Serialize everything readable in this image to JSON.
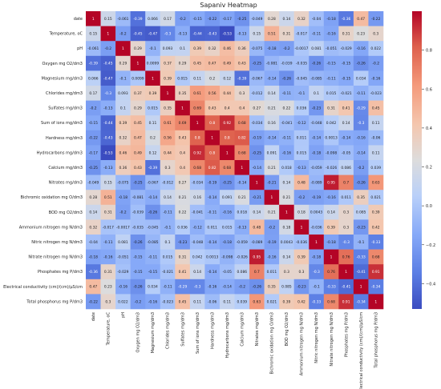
{
  "chart_data": {
    "type": "heatmap",
    "title": "Sapaniv Heatmap",
    "labels": [
      "date",
      "Temperature, oC",
      "pH",
      "Oxygen mg O2/dm3",
      "Magnesium mg/dm3",
      "Chlorides mg/dm3",
      "Sulfates mg/dm3",
      "Sum of ions mg/dm3",
      "Hardness mg/dm3",
      "Hydrocarbons mg/dm3",
      "Calcium mg/dm3",
      "Nitrates mg/dm3",
      "Bichromic oxidation mg O/dm3",
      "BOD mg O2/dm3",
      "Ammonium nitrogen mg N/dm3",
      "Nitric nitrogen mg N/dm3",
      "Nitrate nitrogen mg N/dm3",
      "Phosphates mg P/dm3",
      "Electrical conductivity (cm)/(cm)/µS/cm",
      "Total phosphorus mg P/dm3"
    ],
    "matrix": [
      [
        "1",
        "0.15",
        "-0.061",
        "-0.39",
        "0.066",
        "0.17",
        "-0.2",
        "-0.15",
        "-0.22",
        "-0.17",
        "-0.25",
        "-0.049",
        "0.28",
        "0.14",
        "0.32",
        "-0.04",
        "-0.18",
        "-0.36",
        "0.47",
        "-0.22"
      ],
      [
        "0.15",
        "1",
        "-0.2",
        "-0.45",
        "-0.47",
        "-0.3",
        "-0.13",
        "-0.44",
        "-0.43",
        "-0.53",
        "-0.13",
        "0.15",
        "0.51",
        "0.31",
        "-0.017",
        "-0.11",
        "-0.16",
        "0.31",
        "0.23",
        "0.3"
      ],
      [
        "-0.061",
        "-0.2",
        "1",
        "0.29",
        "-0.1",
        "0.093",
        "0.1",
        "0.39",
        "0.32",
        "0.46",
        "0.36",
        "-0.075",
        "-0.18",
        "-0.2",
        "-0.0017",
        "0.081",
        "-0.051",
        "-0.029",
        "-0.16",
        "0.022"
      ],
      [
        "-0.39",
        "-0.45",
        "0.29",
        "1",
        "0.0099",
        "0.37",
        "0.29",
        "0.45",
        "0.47",
        "0.49",
        "0.43",
        "-0.25",
        "-0.081",
        "-0.039",
        "-0.035",
        "-0.26",
        "-0.15",
        "-0.15",
        "-0.26",
        "-0.2"
      ],
      [
        "0.066",
        "-0.47",
        "-0.1",
        "0.0099",
        "1",
        "0.39",
        "0.015",
        "0.11",
        "0.2",
        "0.12",
        "-0.39",
        "-0.067",
        "-0.14",
        "-0.26",
        "-0.045",
        "-0.085",
        "-0.11",
        "-0.15",
        "0.034",
        "-0.16"
      ],
      [
        "0.17",
        "-0.3",
        "0.093",
        "0.37",
        "0.39",
        "1",
        "0.35",
        "0.61",
        "0.56",
        "0.44",
        "0.3",
        "-0.012",
        "0.14",
        "-0.11",
        "-0.1",
        "0.1",
        "0.015",
        "-0.021",
        "-0.11",
        "-0.023"
      ],
      [
        "-0.2",
        "-0.13",
        "0.1",
        "0.29",
        "0.015",
        "0.35",
        "1",
        "0.69",
        "0.43",
        "0.4",
        "0.4",
        "0.27",
        "0.21",
        "0.22",
        "0.036",
        "-0.23",
        "0.31",
        "0.41",
        "-0.29",
        "0.45"
      ],
      [
        "-0.15",
        "-0.44",
        "0.39",
        "0.45",
        "0.11",
        "0.61",
        "0.69",
        "1",
        "0.8",
        "0.92",
        "0.68",
        "-0.034",
        "0.16",
        "-0.041",
        "-0.12",
        "-0.048",
        "0.042",
        "0.14",
        "-0.3",
        "0.11"
      ],
      [
        "-0.22",
        "-0.43",
        "0.32",
        "0.47",
        "0.2",
        "0.56",
        "0.43",
        "0.8",
        "1",
        "0.8",
        "0.82",
        "-0.19",
        "-0.14",
        "-0.11",
        "0.011",
        "-0.14",
        "0.0013",
        "-0.14",
        "-0.16",
        "-0.06"
      ],
      [
        "-0.17",
        "-0.53",
        "0.46",
        "0.49",
        "0.12",
        "0.44",
        "0.4",
        "0.92",
        "0.8",
        "1",
        "0.68",
        "-0.25",
        "0.091",
        "-0.16",
        "0.015",
        "-0.18",
        "-0.098",
        "-0.05",
        "-0.14",
        "0.11"
      ],
      [
        "-0.25",
        "-0.13",
        "0.36",
        "0.43",
        "-0.39",
        "0.3",
        "0.4",
        "0.68",
        "0.82",
        "0.68",
        "1",
        "-0.14",
        "0.21",
        "0.018",
        "-0.13",
        "-0.059",
        "-0.026",
        "0.086",
        "-0.2",
        "0.039"
      ],
      [
        "-0.049",
        "0.15",
        "-0.075",
        "-0.25",
        "-0.067",
        "-0.012",
        "0.27",
        "-0.034",
        "-0.19",
        "-0.25",
        "-0.14",
        "1",
        "-0.21",
        "0.14",
        "0.48",
        "-0.089",
        "0.95",
        "0.7",
        "-0.26",
        "0.63"
      ],
      [
        "0.28",
        "0.51",
        "-0.18",
        "-0.081",
        "-0.14",
        "0.14",
        "0.21",
        "0.16",
        "-0.14",
        "0.091",
        "0.21",
        "-0.21",
        "1",
        "0.21",
        "-0.2",
        "-0.19",
        "-0.16",
        "0.011",
        "0.35",
        "0.021"
      ],
      [
        "0.14",
        "0.31",
        "-0.2",
        "-0.039",
        "-0.26",
        "-0.11",
        "0.22",
        "-0.041",
        "-0.11",
        "-0.16",
        "0.018",
        "0.14",
        "0.21",
        "1",
        "0.18",
        "0.0043",
        "0.14",
        "0.3",
        "0.085",
        "0.39"
      ],
      [
        "0.32",
        "-0.017",
        "-0.0017",
        "-0.035",
        "-0.045",
        "-0.1",
        "0.036",
        "-0.12",
        "0.011",
        "0.015",
        "-0.13",
        "0.48",
        "-0.2",
        "0.18",
        "1",
        "-0.036",
        "0.39",
        "0.3",
        "-0.23",
        "0.42"
      ],
      [
        "-0.04",
        "-0.11",
        "0.081",
        "-0.26",
        "-0.085",
        "0.1",
        "-0.23",
        "-0.048",
        "-0.14",
        "-0.18",
        "-0.059",
        "-0.089",
        "-0.19",
        "0.0043",
        "-0.036",
        "1",
        "-0.18",
        "-0.3",
        "-0.1",
        "-0.33"
      ],
      [
        "-0.18",
        "-0.16",
        "-0.051",
        "-0.15",
        "-0.11",
        "0.015",
        "0.31",
        "0.042",
        "0.0013",
        "-0.098",
        "-0.026",
        "0.95",
        "-0.16",
        "0.14",
        "0.39",
        "-0.18",
        "1",
        "0.76",
        "-0.33",
        "0.68"
      ],
      [
        "-0.36",
        "0.31",
        "-0.029",
        "-0.15",
        "-0.15",
        "-0.021",
        "0.41",
        "0.14",
        "-0.14",
        "-0.05",
        "0.086",
        "0.7",
        "0.011",
        "0.3",
        "0.3",
        "-0.3",
        "0.76",
        "1",
        "-0.41",
        "0.91"
      ],
      [
        "0.47",
        "0.23",
        "-0.16",
        "-0.26",
        "0.034",
        "-0.11",
        "-0.29",
        "-0.3",
        "-0.16",
        "-0.14",
        "-0.2",
        "-0.26",
        "0.35",
        "0.085",
        "-0.23",
        "-0.1",
        "-0.33",
        "-0.41",
        "1",
        "-0.34"
      ],
      [
        "-0.22",
        "0.3",
        "0.022",
        "-0.2",
        "-0.16",
        "-0.023",
        "0.45",
        "0.11",
        "-0.06",
        "0.11",
        "0.039",
        "0.63",
        "0.021",
        "0.39",
        "0.42",
        "-0.33",
        "0.68",
        "0.91",
        "-0.34",
        "1"
      ]
    ],
    "colorbar": {
      "range": [
        -0.53,
        1.0
      ],
      "ticks": [
        "0.8",
        "0.6",
        "0.4",
        "0.2",
        "0.0",
        "−0.2",
        "−0.4"
      ],
      "tick_values": [
        0.8,
        0.6,
        0.4,
        0.2,
        0.0,
        -0.2,
        -0.4
      ],
      "colormap": "coolwarm"
    }
  }
}
